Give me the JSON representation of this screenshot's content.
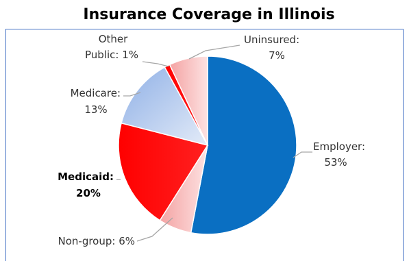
{
  "chart_data": {
    "type": "pie",
    "title": "Insurance Coverage in Illinois",
    "slices": [
      {
        "key": "employer",
        "label": "Employer:",
        "pct": "53%",
        "value": 53,
        "color": "#0070c0",
        "gradient": "solid-blue",
        "bold": false
      },
      {
        "key": "non-group",
        "label": "Non-group:",
        "pct": "6%",
        "value": 6,
        "color": "#f4a6a6",
        "gradient": "pink",
        "bold": false
      },
      {
        "key": "medicaid",
        "label": "Medicaid:",
        "pct": "20%",
        "value": 20,
        "color": "#ff0000",
        "gradient": "red",
        "bold": true
      },
      {
        "key": "medicare",
        "label": "Medicare:",
        "pct": "13%",
        "value": 13,
        "color": "#9db9e8",
        "gradient": "light-blue",
        "bold": false
      },
      {
        "key": "other-public",
        "label": "Other Public:",
        "pct": "1%",
        "value": 1,
        "color": "#ff0000",
        "gradient": "red",
        "bold": false
      },
      {
        "key": "uninsured",
        "label": "Uninsured:",
        "pct": "7%",
        "value": 7,
        "color": "#f4a6a6",
        "gradient": "pink",
        "bold": false
      }
    ],
    "legend": "none",
    "start_angle": "12 o'clock",
    "direction": "clockwise"
  }
}
